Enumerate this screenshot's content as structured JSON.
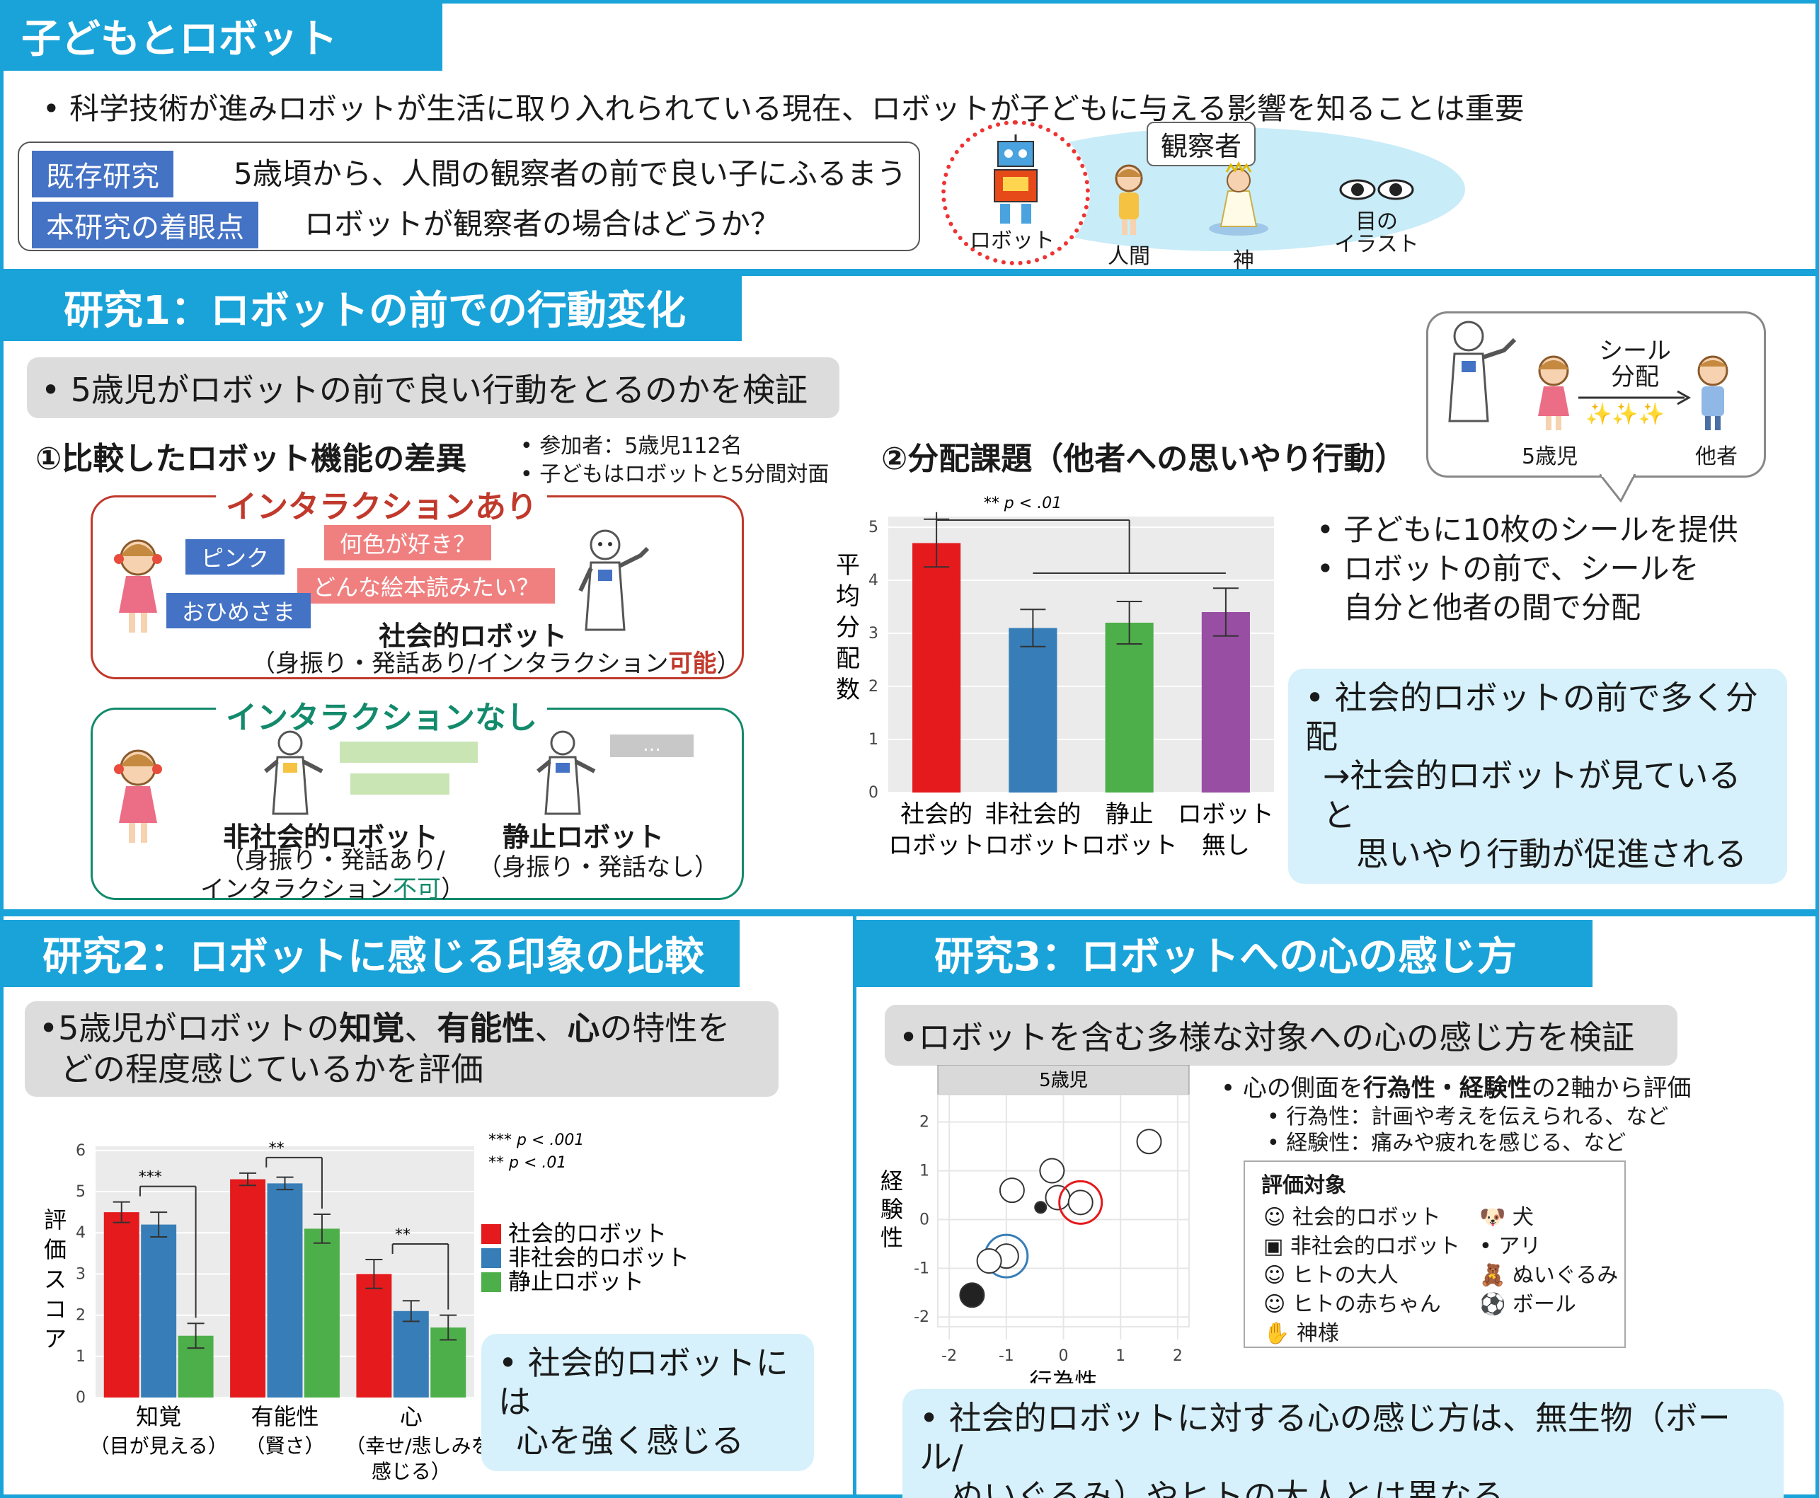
{
  "intro": {
    "title": "子どもとロボット",
    "bullet": "• 科学技術が進みロボットが生活に取り入れられている現在、ロボットが子どもに与える影響を知ることは重要",
    "prior_label": "既存研究",
    "prior_text": "5歳頃から、人間の観察者の前で良い子にふるまう",
    "focus_label": "本研究の着眼点",
    "focus_text": "ロボットが観察者の場合はどうか？",
    "observer_label": "観察者",
    "robot": "ロボット",
    "human": "人間",
    "god": "神",
    "eyes_1": "目の",
    "eyes_2": "イラスト"
  },
  "study1": {
    "title": "研究1：ロボットの前での行動変化",
    "goal": "• 5歳児がロボットの前で良い行動をとるのかを検証",
    "sec1_title": "①比較したロボット機能の差異",
    "participants": "• 参加者：5歳児112名",
    "session": "• 子どもはロボットと5分間対面",
    "inter_yes": "インタラクションあり",
    "bubble_color": "何色が好き？",
    "bubble_pink": "ピンク",
    "bubble_book": "どんな絵本読みたい？",
    "bubble_princess": "おひめさま",
    "social_robot": "社会的ロボット",
    "social_desc_a": "（身振り・発話あり/インタラクション",
    "social_desc_b": "可能",
    "social_desc_c": "）",
    "inter_no": "インタラクションなし",
    "nonsocial_robot": "非社会的ロボット",
    "nonsocial_desc1": "（身振り・発話あり/",
    "nonsocial_desc2a": "インタラクション",
    "nonsocial_desc2b": "不可",
    "nonsocial_desc2c": "）",
    "static_robot": "静止ロボット",
    "static_desc": "（身振り・発話なし）",
    "ellipsis": "…",
    "sec2_title": "②分配課題（他者への思いやり行動）",
    "sticker_1": "シール",
    "sticker_2": "分配",
    "sparkle": "✨✨✨",
    "child": "5歳児",
    "other": "他者",
    "task_b1": "• 子どもに10枚のシールを提供",
    "task_b2a": "• ロボットの前で、シールを",
    "task_b2b": "自分と他者の間で分配",
    "result_1": "• 社会的ロボットの前で多く分配",
    "result_2": "→社会的ロボットが見ていると",
    "result_3": "思いやり行動が促進される"
  },
  "study2": {
    "title": "研究2：ロボットに感じる印象の比較",
    "goal_1a": "•5歳児がロボットの",
    "goal_1b": "知覚",
    "goal_1c": "、",
    "goal_1d": "有能性",
    "goal_1e": "、",
    "goal_1f": "心",
    "goal_1g": "の特性を",
    "goal_2": "どの程度感じているかを評価",
    "result_1": "• 社会的ロボットには",
    "result_2": "心を強く感じる"
  },
  "study3": {
    "title": "研究3：ロボットへの心の感じ方",
    "goal": "•ロボットを含む多様な対象への心の感じ方を検証",
    "axes_a": "• 心の側面を",
    "axes_b": "行為性・経験性",
    "axes_c": "の2軸から評価",
    "agency_def": "• 行為性：計画や考えを伝えられる、など",
    "experience_def": "• 経験性：痛みや疲れを感じる、など",
    "legend_title": "評価対象",
    "legend_items": [
      "社会的ロボット",
      "非社会的ロボット",
      "ヒトの大人",
      "ヒトの赤ちゃん",
      "神様",
      "犬",
      "アリ",
      "ぬいぐるみ",
      "ボール"
    ],
    "result_1": "• 社会的ロボットに対する心の感じ方は、無生物（ボール/",
    "result_2": "ぬいぐるみ）やヒトの大人とは異なる"
  },
  "chart_data": [
    {
      "type": "bar",
      "categories": [
        "社会的ロボット",
        "非社会的ロボット",
        "静止ロボット",
        "ロボット無し"
      ],
      "category_lines": [
        [
          "社会的",
          "ロボット"
        ],
        [
          "非社会的",
          "ロボット"
        ],
        [
          "静止",
          "ロボット"
        ],
        [
          "ロボット",
          "無し"
        ]
      ],
      "values": [
        4.7,
        3.1,
        3.2,
        3.4
      ],
      "errors": [
        0.45,
        0.35,
        0.4,
        0.45
      ],
      "colors": [
        "#e41a1c",
        "#377eb8",
        "#4daf4a",
        "#984ea3"
      ],
      "ylabel": "平均分配数",
      "ylim": [
        0,
        5.2
      ],
      "yticks": [
        0,
        1,
        2,
        3,
        4,
        5
      ],
      "annotation": "** p < .01",
      "grid": true
    },
    {
      "type": "bar",
      "categories": [
        "知覚",
        "有能性",
        "心"
      ],
      "category_sublabels": [
        "（目が見える）",
        "（賢さ）",
        "（幸せ/悲しみを感じる）"
      ],
      "series": [
        {
          "name": "社会的ロボット",
          "values": [
            4.5,
            5.3,
            3.0
          ],
          "errors": [
            0.25,
            0.15,
            0.35
          ],
          "color": "#e41a1c"
        },
        {
          "name": "非社会的ロボット",
          "values": [
            4.2,
            5.2,
            2.1
          ],
          "errors": [
            0.3,
            0.15,
            0.25
          ],
          "color": "#377eb8"
        },
        {
          "name": "静止ロボット",
          "values": [
            1.5,
            4.1,
            1.7
          ],
          "errors": [
            0.3,
            0.35,
            0.3
          ],
          "color": "#4daf4a"
        }
      ],
      "ylabel": "評価スコア",
      "ylim": [
        0,
        6.1
      ],
      "yticks": [
        0,
        1,
        2,
        3,
        4,
        5,
        6
      ],
      "annotations": [
        "***",
        "**",
        "**"
      ],
      "legend_notes": [
        "*** p < .001",
        "** p < .01"
      ],
      "legend_position": "right",
      "grid": true
    },
    {
      "type": "scatter",
      "panel_title": "5歳児",
      "xlabel": "行為性",
      "ylabel": "経験性",
      "xlim": [
        -2.2,
        2.2
      ],
      "ylim": [
        -2.2,
        2.3
      ],
      "xticks": [
        -2,
        -1,
        0,
        1,
        2
      ],
      "yticks": [
        -2,
        -1,
        0,
        1,
        2
      ],
      "points": [
        {
          "label": "ヒトの大人",
          "x": 1.5,
          "y": 1.6
        },
        {
          "label": "犬",
          "x": -0.2,
          "y": 1.0
        },
        {
          "label": "ヒトの赤ちゃん",
          "x": -0.9,
          "y": 0.6
        },
        {
          "label": "神様",
          "x": -0.1,
          "y": 0.45
        },
        {
          "label": "社会的ロボット",
          "x": 0.3,
          "y": 0.35
        },
        {
          "label": "アリ",
          "x": -0.4,
          "y": 0.25
        },
        {
          "label": "非社会的ロボット",
          "x": -1.0,
          "y": -0.75
        },
        {
          "label": "ぬいぐるみ",
          "x": -1.3,
          "y": -0.85
        },
        {
          "label": "ボール",
          "x": -1.6,
          "y": -1.55
        }
      ],
      "highlighted": [
        "社会的ロボット",
        "非社会的ロボット"
      ],
      "grid": true
    }
  ]
}
